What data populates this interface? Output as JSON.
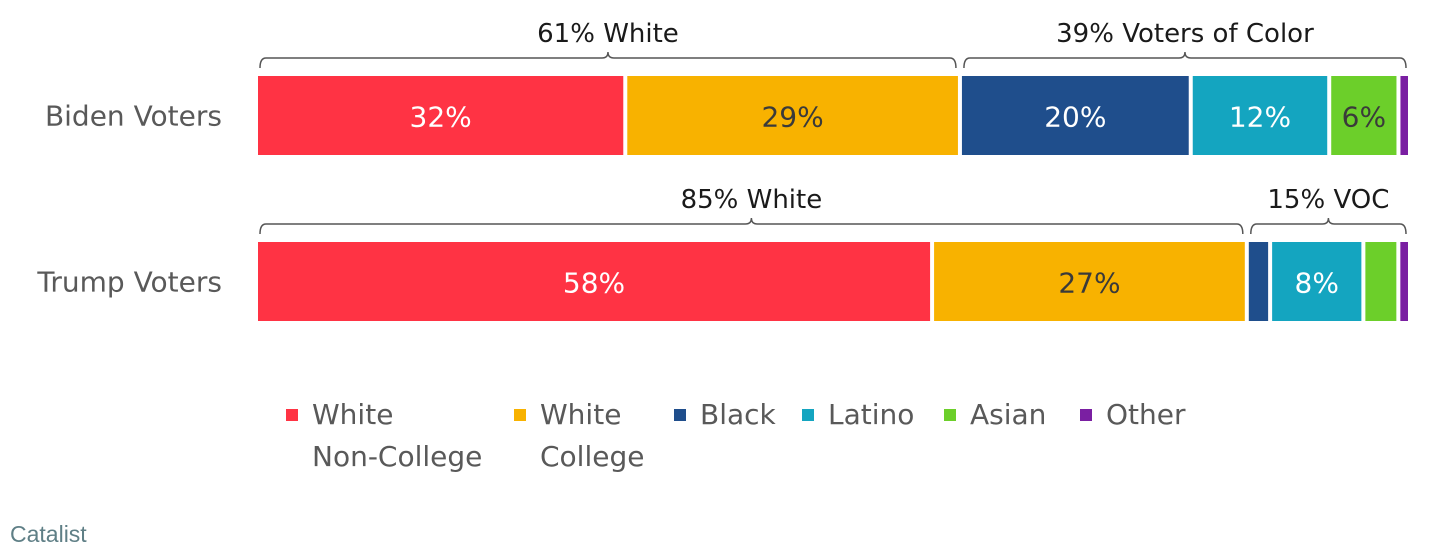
{
  "chart_data": {
    "type": "bar",
    "stacked": true,
    "orientation": "horizontal",
    "categories": [
      "Biden Voters",
      "Trump Voters"
    ],
    "series": [
      {
        "name": "White Non-College",
        "values": [
          32,
          58
        ],
        "color": "#ff3344",
        "text_color": "#ffffff",
        "labels": [
          "32%",
          "58%"
        ]
      },
      {
        "name": "White College",
        "values": [
          29,
          27
        ],
        "color": "#f8b200",
        "text_color": "#3a3a3a",
        "labels": [
          "29%",
          "27%"
        ]
      },
      {
        "name": "Black",
        "values": [
          20,
          2
        ],
        "color": "#1f4e8c",
        "text_color": "#ffffff",
        "labels": [
          "20%",
          ""
        ]
      },
      {
        "name": "Latino",
        "values": [
          12,
          8
        ],
        "color": "#14a5c0",
        "text_color": "#ffffff",
        "labels": [
          "12%",
          "8%"
        ]
      },
      {
        "name": "Asian",
        "values": [
          6,
          3
        ],
        "color": "#6ccf2a",
        "text_color": "#3a3a3a",
        "labels": [
          "6%",
          ""
        ]
      },
      {
        "name": "Other",
        "values": [
          1,
          1
        ],
        "color": "#7a1fa2",
        "text_color": "#ffffff",
        "labels": [
          "",
          ""
        ]
      }
    ],
    "groups": [
      {
        "row": 0,
        "label": "61% White",
        "from": 0,
        "to": 2
      },
      {
        "row": 0,
        "label": "39% Voters of Color",
        "from": 2,
        "to": 6
      },
      {
        "row": 1,
        "label": "85% White",
        "from": 0,
        "to": 2
      },
      {
        "row": 1,
        "label": "15% VOC",
        "from": 2,
        "to": 6
      }
    ],
    "legend": {
      "position": "bottom",
      "items": [
        {
          "text": "White\nNon-College",
          "color": "#ff3344"
        },
        {
          "text": "White\nCollege",
          "color": "#f8b200"
        },
        {
          "text": "Black",
          "color": "#1f4e8c"
        },
        {
          "text": "Latino",
          "color": "#14a5c0"
        },
        {
          "text": "Asian",
          "color": "#6ccf2a"
        },
        {
          "text": "Other",
          "color": "#7a1fa2"
        }
      ]
    },
    "source": "Catalist"
  }
}
